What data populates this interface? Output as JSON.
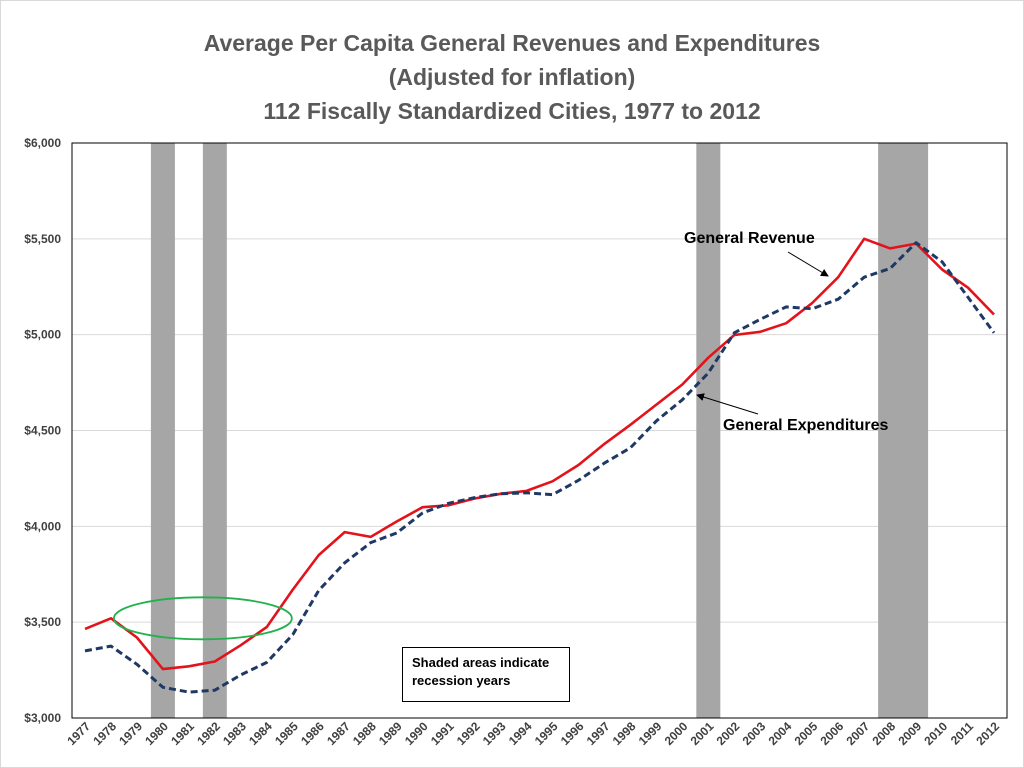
{
  "chart_data": {
    "type": "line",
    "title_lines": [
      "Average Per Capita General Revenues and Expenditures",
      "(Adjusted for inflation)",
      "112 Fiscally Standardized Cities, 1977 to 2012"
    ],
    "x": [
      "1977",
      "1978",
      "1979",
      "1980",
      "1981",
      "1982",
      "1983",
      "1984",
      "1985",
      "1986",
      "1987",
      "1988",
      "1989",
      "1990",
      "1991",
      "1992",
      "1993",
      "1994",
      "1995",
      "1996",
      "1997",
      "1998",
      "1999",
      "2000",
      "2001",
      "2002",
      "2003",
      "2004",
      "2005",
      "2006",
      "2007",
      "2008",
      "2009",
      "2010",
      "2011",
      "2012"
    ],
    "y_ticks": [
      "$3,000",
      "$3,500",
      "$4,000",
      "$4,500",
      "$5,000",
      "$5,500",
      "$6,000"
    ],
    "ylim": [
      3000,
      6000
    ],
    "series": [
      {
        "name": "General Revenue",
        "color": "#e3131b",
        "style": "solid",
        "values": [
          3465,
          3520,
          3420,
          3255,
          3270,
          3295,
          3380,
          3475,
          3670,
          3850,
          3970,
          3945,
          4025,
          4100,
          4110,
          4145,
          4170,
          4185,
          4235,
          4320,
          4430,
          4530,
          4635,
          4740,
          4880,
          4998,
          5015,
          5060,
          5165,
          5300,
          5500,
          5450,
          5475,
          5340,
          5245,
          5105
        ]
      },
      {
        "name": "General Expenditures",
        "color": "#1f3864",
        "style": "dashed",
        "values": [
          3350,
          3375,
          3280,
          3160,
          3135,
          3145,
          3225,
          3290,
          3435,
          3665,
          3810,
          3915,
          3965,
          4070,
          4120,
          4150,
          4170,
          4175,
          4165,
          4240,
          4330,
          4410,
          4550,
          4660,
          4800,
          5010,
          5080,
          5145,
          5135,
          5185,
          5300,
          5345,
          5480,
          5380,
          5195,
          5010
        ]
      }
    ],
    "recession_years": [
      {
        "start": "1980",
        "end": "1980"
      },
      {
        "start": "1982",
        "end": "1982"
      },
      {
        "start": "2001",
        "end": "2001"
      },
      {
        "start": "2008",
        "end": "2009"
      }
    ],
    "annotations": {
      "revenue_label": "General Revenue",
      "expenditure_label": "General Expenditures",
      "note": "Shaded areas indicate recession years"
    },
    "highlight_ellipse": {
      "center_year": "1981",
      "center_value": 3520,
      "color": "#22b14c"
    },
    "colors": {
      "recession": "#a6a6a6",
      "grid": "#d9d9d9",
      "axis": "#000000"
    }
  }
}
